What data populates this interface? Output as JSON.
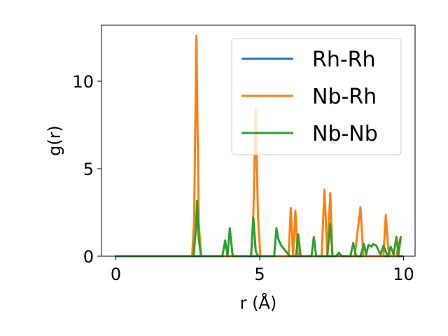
{
  "chart_data": {
    "type": "line",
    "xlabel": "r (Å)",
    "ylabel": "g(r)",
    "xlim": [
      -0.5,
      10.4
    ],
    "ylim": [
      0,
      13.2
    ],
    "xticks": [
      0,
      5,
      10
    ],
    "yticks": [
      0,
      5,
      10
    ],
    "grid": false,
    "legend_position": "top-right",
    "series": [
      {
        "name": "Rh-Rh",
        "color": "#1f77b4",
        "x": [
          0,
          9.95
        ],
        "y": [
          0,
          0
        ]
      },
      {
        "name": "Nb-Rh",
        "color": "#ff7f0e",
        "x": [
          0,
          2.65,
          2.72,
          2.8,
          2.88,
          2.96,
          4.7,
          4.78,
          4.86,
          4.94,
          5.02,
          6.0,
          6.08,
          6.16,
          6.24,
          6.32,
          6.4,
          7.15,
          7.25,
          7.35,
          7.45,
          7.53,
          8.3,
          8.4,
          8.5,
          8.6,
          9.3,
          9.38,
          9.46,
          9.54,
          9.75,
          9.82,
          9.9
        ],
        "y": [
          0,
          0,
          2.0,
          12.6,
          2.0,
          0,
          0,
          2.5,
          8.4,
          2.2,
          0,
          0,
          2.75,
          0,
          2.6,
          0.2,
          0,
          0,
          3.8,
          0,
          3.6,
          0,
          0,
          1.4,
          2.8,
          0,
          0,
          2.35,
          0.5,
          0,
          0,
          0.6,
          1.1
        ]
      },
      {
        "name": "Nb-Nb",
        "color": "#2ca02c",
        "x": [
          0,
          2.7,
          2.78,
          2.82,
          2.88,
          2.96,
          3.7,
          3.8,
          3.88,
          3.96,
          4.06,
          4.14,
          4.7,
          4.78,
          4.86,
          4.94,
          5.5,
          5.58,
          5.64,
          5.75,
          5.9,
          6.05,
          6.26,
          6.34,
          6.42,
          6.8,
          6.88,
          6.96,
          7.35,
          7.45,
          7.53,
          7.65,
          7.75,
          7.85,
          8.15,
          8.25,
          8.35,
          8.5,
          8.62,
          8.7,
          8.78,
          8.88,
          8.95,
          9.05,
          9.2,
          9.3,
          9.45,
          9.55,
          9.65,
          9.75,
          9.82,
          9.9
        ],
        "y": [
          0,
          0,
          1.5,
          3.15,
          1.0,
          0,
          0,
          0.9,
          0,
          1.6,
          0,
          0,
          0,
          2.2,
          0.3,
          0,
          0,
          1.6,
          1.0,
          0.6,
          0.3,
          0,
          0,
          1.25,
          0,
          0,
          1.1,
          0,
          0,
          1.85,
          0,
          0,
          0.2,
          0,
          0,
          0.75,
          0,
          0,
          0.7,
          0.1,
          0.65,
          0.55,
          0.7,
          0.6,
          0.1,
          0.6,
          0,
          0.55,
          0.1,
          1.1,
          0.1,
          1.05
        ]
      }
    ]
  }
}
